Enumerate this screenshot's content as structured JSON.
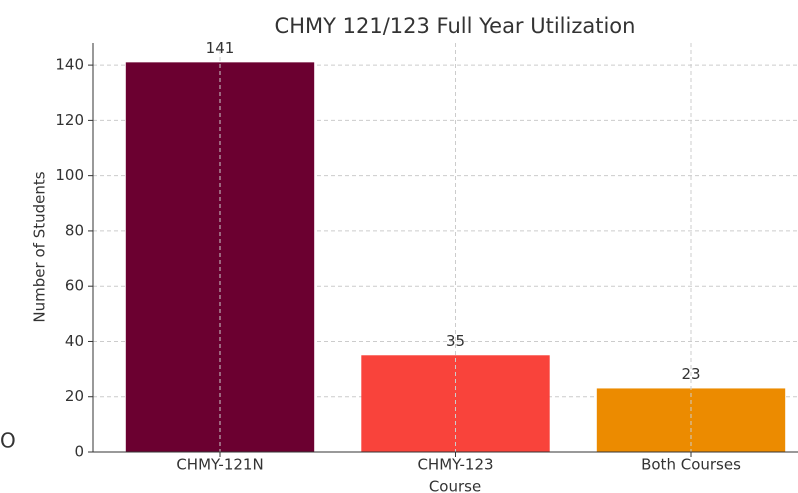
{
  "chart_data": {
    "type": "bar",
    "title": "CHMY 121/123 Full Year Utilization",
    "xlabel": "Course",
    "ylabel": "Number of Students",
    "categories": [
      "CHMY-121N",
      "CHMY-123",
      "Both Courses"
    ],
    "values": [
      141,
      35,
      23
    ],
    "colors": [
      "#6b0030",
      "#f9433b",
      "#ec8b00"
    ],
    "ylim": [
      0,
      148
    ],
    "yticks": [
      0,
      20,
      40,
      60,
      80,
      100,
      120,
      140
    ],
    "grid": true,
    "annotation": "O"
  }
}
